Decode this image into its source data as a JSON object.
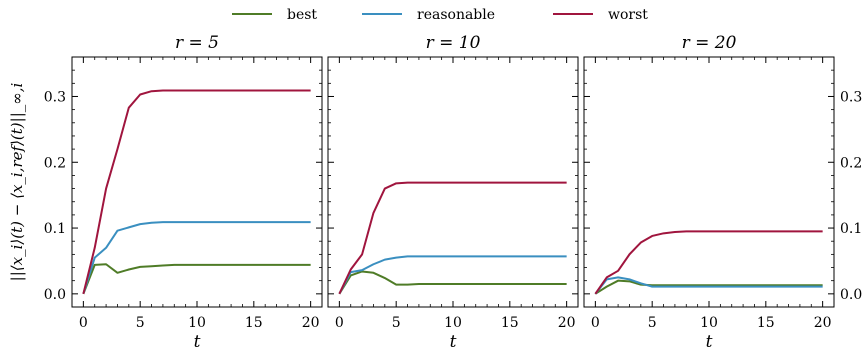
{
  "chart_data": {
    "type": "line",
    "legend": {
      "placement": "top-center",
      "entries": [
        "best",
        "reasonable",
        "worst"
      ]
    },
    "ylabel": "||⟨x_i⟩(t) − ⟨x_i,ref⟩(t)||_∞,i",
    "xlabel": "t",
    "xlim": [
      -1,
      21
    ],
    "ylim": [
      -0.02,
      0.36
    ],
    "xticks": [
      0,
      5,
      10,
      15,
      20
    ],
    "yticks": [
      0.0,
      0.1,
      0.2,
      0.3
    ],
    "ytick_labels": [
      "0.0",
      "0.1",
      "0.2",
      "0.3"
    ],
    "colors": {
      "best": "#4f7c27",
      "reasonable": "#3a8fc0",
      "worst": "#a0153e"
    },
    "panels": [
      {
        "title": "r = 5",
        "x": [
          0,
          1,
          2,
          3,
          4,
          5,
          6,
          7,
          8,
          10,
          12,
          15,
          20
        ],
        "series": [
          {
            "name": "best",
            "values": [
              0.0,
              0.044,
              0.045,
              0.032,
              0.037,
              0.041,
              0.042,
              0.043,
              0.044,
              0.044,
              0.044,
              0.044,
              0.044
            ]
          },
          {
            "name": "reasonable",
            "values": [
              0.0,
              0.055,
              0.07,
              0.096,
              0.101,
              0.106,
              0.108,
              0.109,
              0.109,
              0.109,
              0.109,
              0.109,
              0.109
            ]
          },
          {
            "name": "worst",
            "values": [
              0.0,
              0.07,
              0.16,
              0.22,
              0.283,
              0.303,
              0.308,
              0.309,
              0.309,
              0.309,
              0.309,
              0.309,
              0.309
            ]
          }
        ]
      },
      {
        "title": "r = 10",
        "x": [
          0,
          1,
          2,
          3,
          4,
          5,
          6,
          7,
          8,
          10,
          12,
          15,
          20
        ],
        "series": [
          {
            "name": "best",
            "values": [
              0.0,
              0.028,
              0.034,
              0.032,
              0.024,
              0.014,
              0.014,
              0.015,
              0.015,
              0.015,
              0.015,
              0.015,
              0.015
            ]
          },
          {
            "name": "reasonable",
            "values": [
              0.0,
              0.033,
              0.036,
              0.045,
              0.052,
              0.055,
              0.057,
              0.057,
              0.057,
              0.057,
              0.057,
              0.057,
              0.057
            ]
          },
          {
            "name": "worst",
            "values": [
              0.0,
              0.037,
              0.06,
              0.123,
              0.16,
              0.168,
              0.169,
              0.169,
              0.169,
              0.169,
              0.169,
              0.169,
              0.169
            ]
          }
        ]
      },
      {
        "title": "r = 20",
        "x": [
          0,
          1,
          2,
          3,
          4,
          5,
          6,
          7,
          8,
          10,
          12,
          15,
          20
        ],
        "series": [
          {
            "name": "best",
            "values": [
              0.0,
              0.011,
              0.02,
              0.019,
              0.014,
              0.013,
              0.013,
              0.013,
              0.013,
              0.013,
              0.013,
              0.013,
              0.013
            ]
          },
          {
            "name": "reasonable",
            "values": [
              0.0,
              0.022,
              0.025,
              0.022,
              0.016,
              0.011,
              0.011,
              0.011,
              0.011,
              0.011,
              0.011,
              0.011,
              0.011
            ]
          },
          {
            "name": "worst",
            "values": [
              0.0,
              0.025,
              0.035,
              0.06,
              0.078,
              0.088,
              0.092,
              0.094,
              0.095,
              0.095,
              0.095,
              0.095,
              0.095
            ]
          }
        ]
      }
    ]
  }
}
